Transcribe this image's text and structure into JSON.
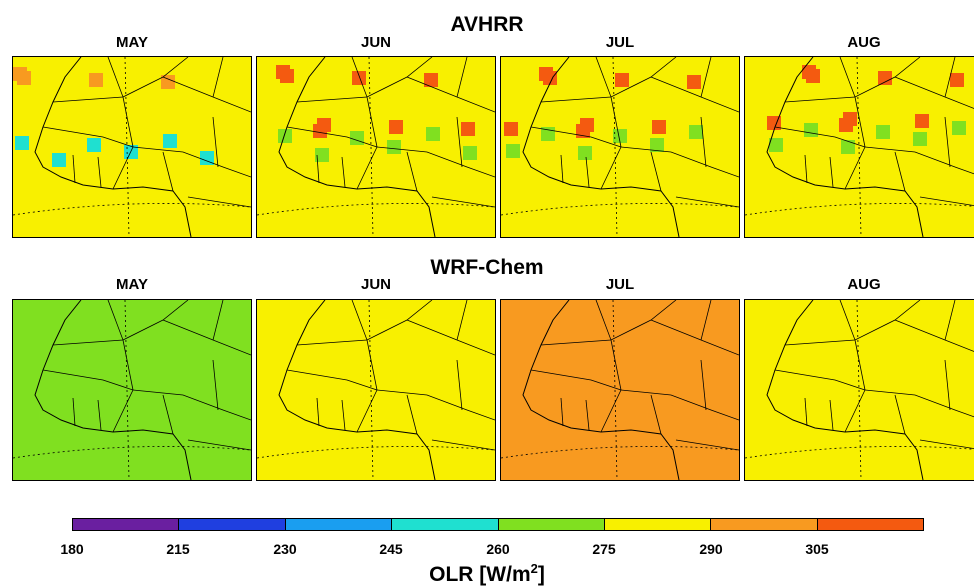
{
  "rows": [
    {
      "title": "AVHRR",
      "months": [
        "MAY",
        "JUN",
        "JUL",
        "AUG"
      ]
    },
    {
      "title": "WRF-Chem",
      "months": [
        "MAY",
        "JUN",
        "JUL",
        "AUG"
      ]
    }
  ],
  "colorbar": {
    "title": "OLR [W/m",
    "title_sup": "2",
    "title_end": "]",
    "ticks": [
      "180",
      "215",
      "230",
      "245",
      "260",
      "275",
      "290",
      "305"
    ],
    "colors": [
      "#6a1fa0",
      "#1f3fe0",
      "#1a9ef0",
      "#1fe0d0",
      "#80e020",
      "#f8f000",
      "#f89a20",
      "#f45a10"
    ]
  }
}
